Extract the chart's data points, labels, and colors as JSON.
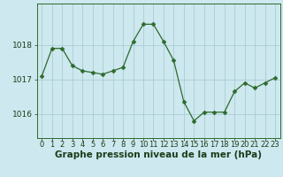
{
  "x": [
    0,
    1,
    2,
    3,
    4,
    5,
    6,
    7,
    8,
    9,
    10,
    11,
    12,
    13,
    14,
    15,
    16,
    17,
    18,
    19,
    20,
    21,
    22,
    23
  ],
  "y": [
    1017.1,
    1017.9,
    1017.9,
    1017.4,
    1017.25,
    1017.2,
    1017.15,
    1017.25,
    1017.35,
    1018.1,
    1018.6,
    1018.6,
    1018.1,
    1017.55,
    1016.35,
    1015.8,
    1016.05,
    1016.05,
    1016.05,
    1016.65,
    1016.9,
    1016.75,
    1016.9,
    1017.05
  ],
  "line_color": "#2d6a2d",
  "marker": "D",
  "marker_size": 2.5,
  "bg_color": "#cde8ee",
  "grid_color": "#aacdd6",
  "xlabel": "Graphe pression niveau de la mer (hPa)",
  "xlabel_fontsize": 7.5,
  "tick_fontsize": 6.0,
  "ytick_fontsize": 6.5,
  "yticks": [
    1016,
    1017,
    1018
  ],
  "ylim": [
    1015.3,
    1019.2
  ],
  "xlim": [
    -0.5,
    23.5
  ],
  "title_color": "#1a3d1a",
  "axis_color": "#2d6a2d"
}
